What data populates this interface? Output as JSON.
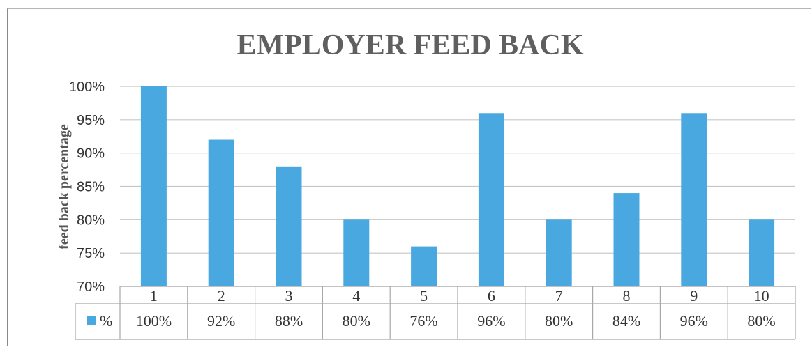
{
  "chart_data": {
    "type": "bar",
    "title": "EMPLOYER FEED BACK",
    "xlabel": "",
    "ylabel": "feed back percentage",
    "ylim": [
      70,
      100
    ],
    "y_ticks": [
      "70%",
      "75%",
      "80%",
      "85%",
      "90%",
      "95%",
      "100%"
    ],
    "categories": [
      "1",
      "2",
      "3",
      "4",
      "5",
      "6",
      "7",
      "8",
      "9",
      "10"
    ],
    "series": [
      {
        "name": "%",
        "color": "#4aa8e0",
        "values": [
          100,
          92,
          88,
          80,
          76,
          96,
          80,
          84,
          96,
          80
        ]
      }
    ],
    "data_table": {
      "row_label": "%",
      "cells": [
        "100%",
        "92%",
        "88%",
        "80%",
        "76%",
        "96%",
        "80%",
        "84%",
        "96%",
        "80%"
      ]
    },
    "grid": true,
    "legend": "data-table-left"
  }
}
